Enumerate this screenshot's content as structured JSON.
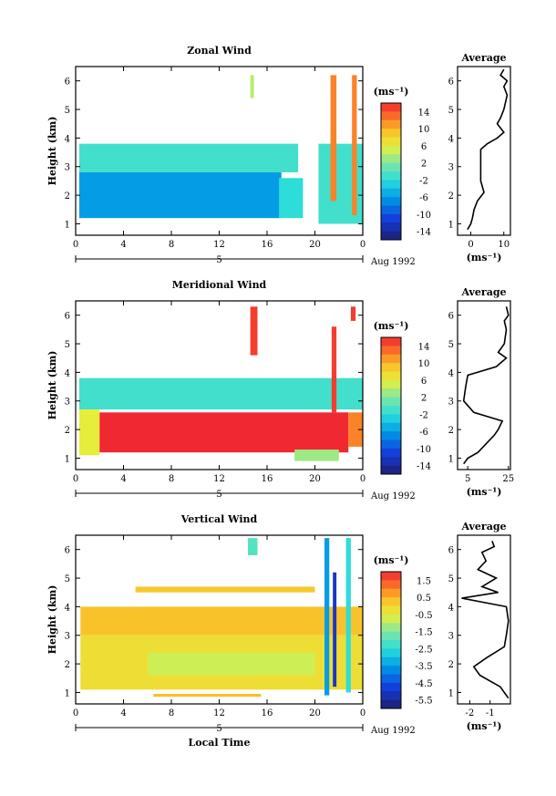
{
  "chart_data": [
    {
      "type": "heatmap",
      "title": "Zonal Wind",
      "ylabel": "Height (km)",
      "x_ticks": [
        "0",
        "4",
        "8",
        "12",
        "16",
        "20",
        "0"
      ],
      "y_ticks": [
        "1",
        "2",
        "3",
        "4",
        "5",
        "6"
      ],
      "xlim": [
        0,
        24
      ],
      "ylim": [
        0.6,
        6.5
      ],
      "date_label": "Aug 1992",
      "day_label": "5",
      "colorbar": {
        "unit": "(ms⁻¹)",
        "ticks": [
          "14",
          "10",
          "6",
          "2",
          "-2",
          "-6",
          "-10",
          "-14"
        ],
        "min": -16,
        "max": 16
      },
      "layers": [
        {
          "x": [
            0.3,
            18.6
          ],
          "y": [
            2.8,
            3.8
          ],
          "value": -1
        },
        {
          "x": [
            0.3,
            17.2
          ],
          "y": [
            1.2,
            2.8
          ],
          "value": -6
        },
        {
          "x": [
            17.0,
            19.0
          ],
          "y": [
            1.2,
            2.6
          ],
          "value": -2
        },
        {
          "x": [
            20.3,
            24.0
          ],
          "y": [
            1.0,
            3.8
          ],
          "value": -1
        },
        {
          "x": [
            21.3,
            21.8
          ],
          "y": [
            1.8,
            6.2
          ],
          "value": 12
        },
        {
          "x": [
            23.1,
            23.5
          ],
          "y": [
            1.3,
            6.2
          ],
          "value": 12
        },
        {
          "x": [
            14.6,
            14.9
          ],
          "y": [
            5.4,
            6.2
          ],
          "value": 4
        }
      ],
      "average": {
        "title": "Average",
        "xlabel": "(ms⁻¹)",
        "x_ticks": [
          "0",
          "10"
        ],
        "xlim": [
          -4,
          12
        ],
        "height": [
          0.8,
          1.0,
          1.2,
          1.5,
          1.8,
          2.1,
          2.5,
          3.0,
          3.3,
          3.6,
          3.8,
          4.0,
          4.2,
          4.5,
          4.7,
          5.0,
          5.5,
          5.8,
          6.0,
          6.2,
          6.4
        ],
        "profile": [
          -1,
          0,
          0.5,
          1,
          2,
          4,
          3,
          3,
          3,
          3,
          5,
          8,
          10,
          8,
          9,
          10,
          11,
          10,
          11,
          9,
          10
        ]
      }
    },
    {
      "type": "heatmap",
      "title": "Meridional Wind",
      "ylabel": "Height (km)",
      "x_ticks": [
        "0",
        "4",
        "8",
        "12",
        "16",
        "20",
        "0"
      ],
      "y_ticks": [
        "1",
        "2",
        "3",
        "4",
        "5",
        "6"
      ],
      "xlim": [
        0,
        24
      ],
      "ylim": [
        0.6,
        6.5
      ],
      "date_label": "Aug 1992",
      "day_label": "5",
      "colorbar": {
        "unit": "(ms⁻¹)",
        "ticks": [
          "14",
          "10",
          "6",
          "2",
          "-2",
          "-6",
          "-10",
          "-14"
        ],
        "min": -16,
        "max": 16
      },
      "layers": [
        {
          "x": [
            0.3,
            24.0
          ],
          "y": [
            2.7,
            3.8
          ],
          "value": -1
        },
        {
          "x": [
            0.3,
            2.0
          ],
          "y": [
            1.1,
            2.7
          ],
          "value": 6
        },
        {
          "x": [
            2.0,
            22.8
          ],
          "y": [
            1.2,
            2.6
          ],
          "value": 16
        },
        {
          "x": [
            18.3,
            22.0
          ],
          "y": [
            0.9,
            1.3
          ],
          "value": 3
        },
        {
          "x": [
            22.8,
            24.0
          ],
          "y": [
            1.4,
            2.6
          ],
          "value": 12
        },
        {
          "x": [
            14.6,
            15.2
          ],
          "y": [
            4.6,
            6.3
          ],
          "value": 15
        },
        {
          "x": [
            21.4,
            21.8
          ],
          "y": [
            2.6,
            5.6
          ],
          "value": 15
        },
        {
          "x": [
            23.0,
            23.4
          ],
          "y": [
            5.8,
            6.3
          ],
          "value": 15
        }
      ],
      "average": {
        "title": "Average",
        "xlabel": "(ms⁻¹)",
        "x_ticks": [
          "5",
          "25"
        ],
        "xlim": [
          0,
          26
        ],
        "height": [
          0.8,
          1.0,
          1.2,
          1.5,
          1.8,
          2.0,
          2.3,
          2.6,
          3.0,
          3.5,
          3.9,
          4.2,
          4.5,
          4.7,
          5.0,
          5.5,
          5.8,
          6.0,
          6.3
        ],
        "profile": [
          3,
          5,
          10,
          14,
          18,
          20,
          22,
          8,
          3,
          4,
          5,
          19,
          24,
          20,
          23,
          24,
          23,
          25,
          24
        ]
      }
    },
    {
      "type": "heatmap",
      "title": "Vertical Wind",
      "xlabel": "Local Time",
      "ylabel": "Height (km)",
      "x_ticks": [
        "0",
        "4",
        "8",
        "12",
        "16",
        "20",
        "0"
      ],
      "y_ticks": [
        "1",
        "2",
        "3",
        "4",
        "5",
        "6"
      ],
      "xlim": [
        0,
        24
      ],
      "ylim": [
        0.6,
        6.5
      ],
      "date_label": "Aug 1992",
      "day_label": "5",
      "colorbar": {
        "unit": "(ms⁻¹)",
        "ticks": [
          "1.5",
          "0.5",
          "-0.5",
          "-1.5",
          "-2.5",
          "-3.5",
          "-4.5",
          "-5.5"
        ],
        "min": -6,
        "max": 2
      },
      "layers": [
        {
          "x": [
            0.4,
            24.0
          ],
          "y": [
            3.0,
            4.0
          ],
          "value": 0.3
        },
        {
          "x": [
            0.4,
            24.0
          ],
          "y": [
            1.1,
            3.0
          ],
          "value": -0.2
        },
        {
          "x": [
            6.0,
            20.0
          ],
          "y": [
            1.6,
            2.4
          ],
          "value": -0.8
        },
        {
          "x": [
            5.0,
            20.0
          ],
          "y": [
            4.5,
            4.7
          ],
          "value": 0.2
        },
        {
          "x": [
            14.4,
            15.2
          ],
          "y": [
            5.8,
            6.4
          ],
          "value": -2.0
        },
        {
          "x": [
            20.8,
            21.2
          ],
          "y": [
            0.9,
            6.4
          ],
          "value": -3.5
        },
        {
          "x": [
            21.5,
            21.8
          ],
          "y": [
            1.2,
            5.2
          ],
          "value": -5.0
        },
        {
          "x": [
            22.6,
            23.0
          ],
          "y": [
            1.0,
            6.4
          ],
          "value": -2.5
        },
        {
          "x": [
            6.5,
            15.5
          ],
          "y": [
            0.85,
            0.95
          ],
          "value": 0.4
        }
      ],
      "average": {
        "title": "Average",
        "xlabel": "(ms⁻¹)",
        "x_ticks": [
          "-2",
          "-1"
        ],
        "xlim": [
          -2.6,
          0
        ],
        "height": [
          0.8,
          1.0,
          1.2,
          1.6,
          1.9,
          2.2,
          2.6,
          3.0,
          3.5,
          4.0,
          4.3,
          4.5,
          4.7,
          5.0,
          5.3,
          5.6,
          5.9,
          6.1,
          6.3
        ],
        "profile": [
          -0.1,
          -0.3,
          -0.5,
          -1.5,
          -1.8,
          -1.2,
          -0.3,
          -0.2,
          -0.1,
          -0.2,
          -2.4,
          -0.6,
          -1.4,
          -0.7,
          -1.6,
          -1.2,
          -1.4,
          -0.8,
          -0.9
        ]
      }
    }
  ]
}
